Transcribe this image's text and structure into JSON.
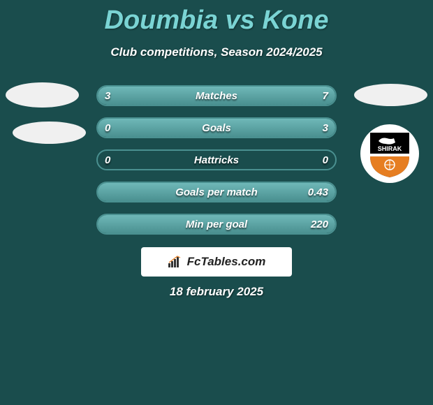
{
  "title": "Doumbia vs Kone",
  "subtitle": "Club competitions, Season 2024/2025",
  "date": "18 february 2025",
  "logo_text": "FcTables.com",
  "badge": {
    "name": "SHIRAK",
    "colors": {
      "top": "#000000",
      "bottom": "#e67e22",
      "line": "#ffffff"
    }
  },
  "bars": [
    {
      "label": "Matches",
      "left": "3",
      "right": "7",
      "left_pct": 30,
      "right_pct": 70
    },
    {
      "label": "Goals",
      "left": "0",
      "right": "3",
      "left_pct": 0,
      "right_pct": 100
    },
    {
      "label": "Hattricks",
      "left": "0",
      "right": "0",
      "left_pct": 0,
      "right_pct": 0
    },
    {
      "label": "Goals per match",
      "left": "",
      "right": "0.43",
      "left_pct": 0,
      "right_pct": 100
    },
    {
      "label": "Min per goal",
      "left": "",
      "right": "220",
      "left_pct": 0,
      "right_pct": 100
    }
  ],
  "colors": {
    "background": "#1a4d4d",
    "title": "#7ad4d4",
    "text": "#ffffff",
    "bar_border": "#4a9090",
    "bar_fill_top": "#6fb8b8",
    "bar_fill_bottom": "#4a9090"
  }
}
